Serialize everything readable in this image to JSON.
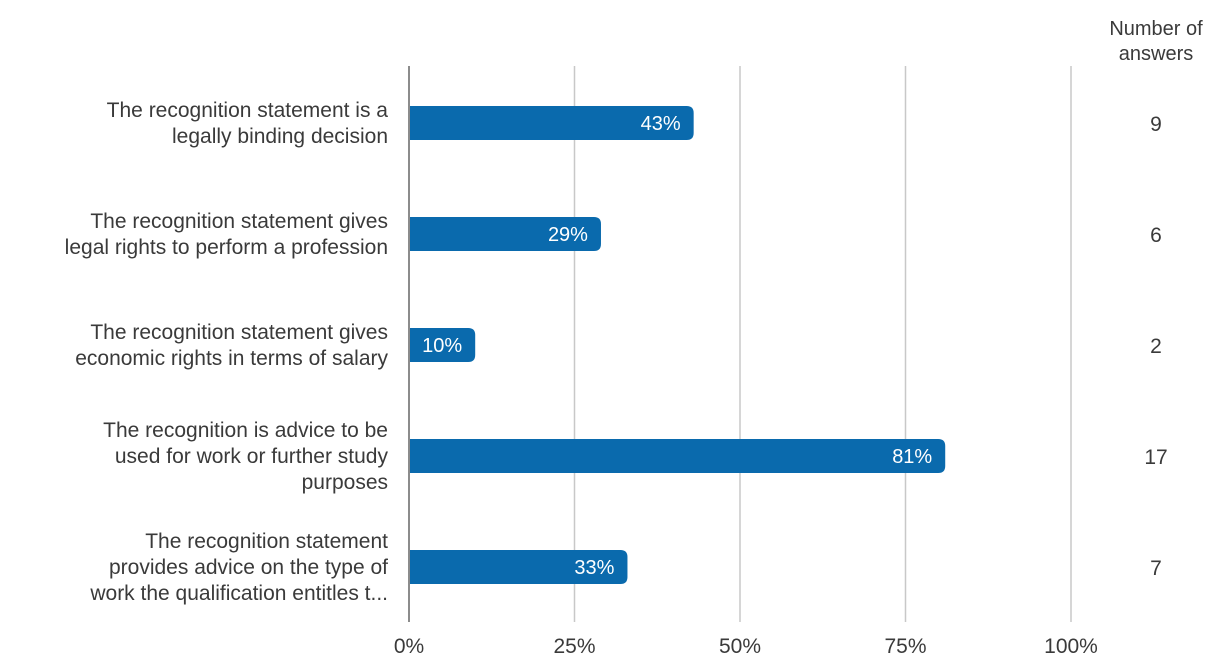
{
  "chart_data": {
    "type": "bar",
    "orientation": "horizontal",
    "categories": [
      [
        "The recognition statement is a",
        "legally binding decision"
      ],
      [
        "The recognition statement gives",
        "legal rights to perform a profession"
      ],
      [
        "The recognition statement gives",
        "economic rights in terms of salary"
      ],
      [
        "The recognition is advice to be",
        "used for work or further study",
        "purposes"
      ],
      [
        "The recognition statement",
        "provides advice on the type of",
        "work the qualification entitles t..."
      ]
    ],
    "values": [
      43,
      29,
      10,
      81,
      33
    ],
    "value_labels": [
      "43%",
      "29%",
      "10%",
      "81%",
      "33%"
    ],
    "counts": [
      "9",
      "6",
      "2",
      "17",
      "7"
    ],
    "counts_header": [
      "Number of",
      "answers"
    ],
    "xlim": [
      0,
      100
    ],
    "xticks": [
      0,
      25,
      50,
      75,
      100
    ],
    "xtick_labels": [
      "0%",
      "25%",
      "50%",
      "75%",
      "100%"
    ],
    "grid": true,
    "colors": {
      "bar": "#0a6aad",
      "grid": "#c8c8c8",
      "axis": "#8c8c8c",
      "text": "#3a3a3a"
    }
  }
}
